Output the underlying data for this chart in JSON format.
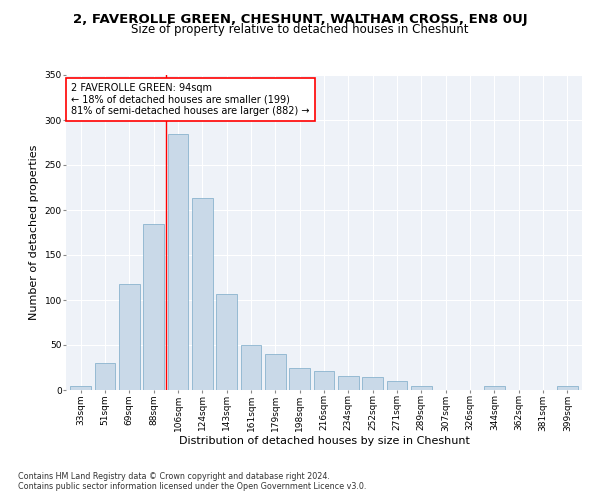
{
  "title": "2, FAVEROLLE GREEN, CHESHUNT, WALTHAM CROSS, EN8 0UJ",
  "subtitle": "Size of property relative to detached houses in Cheshunt",
  "xlabel": "Distribution of detached houses by size in Cheshunt",
  "ylabel": "Number of detached properties",
  "categories": [
    "33sqm",
    "51sqm",
    "69sqm",
    "88sqm",
    "106sqm",
    "124sqm",
    "143sqm",
    "161sqm",
    "179sqm",
    "198sqm",
    "216sqm",
    "234sqm",
    "252sqm",
    "271sqm",
    "289sqm",
    "307sqm",
    "326sqm",
    "344sqm",
    "362sqm",
    "381sqm",
    "399sqm"
  ],
  "bar_values": [
    5,
    30,
    118,
    184,
    285,
    213,
    107,
    50,
    40,
    25,
    21,
    16,
    14,
    10,
    4,
    0,
    0,
    4,
    0,
    0,
    4
  ],
  "bar_color": "#c9d9e8",
  "bar_edge_color": "#7aaac8",
  "vline_x": 3.5,
  "vline_color": "red",
  "annotation_text": "2 FAVEROLLE GREEN: 94sqm\n← 18% of detached houses are smaller (199)\n81% of semi-detached houses are larger (882) →",
  "annotation_box_color": "white",
  "annotation_box_edge_color": "red",
  "ylim": [
    0,
    350
  ],
  "yticks": [
    0,
    50,
    100,
    150,
    200,
    250,
    300,
    350
  ],
  "footnote1": "Contains HM Land Registry data © Crown copyright and database right 2024.",
  "footnote2": "Contains public sector information licensed under the Open Government Licence v3.0.",
  "bg_color": "#eef2f8",
  "title_fontsize": 9.5,
  "subtitle_fontsize": 8.5,
  "tick_fontsize": 6.5,
  "ylabel_fontsize": 8,
  "xlabel_fontsize": 8,
  "annotation_fontsize": 7,
  "footnote_fontsize": 5.8
}
